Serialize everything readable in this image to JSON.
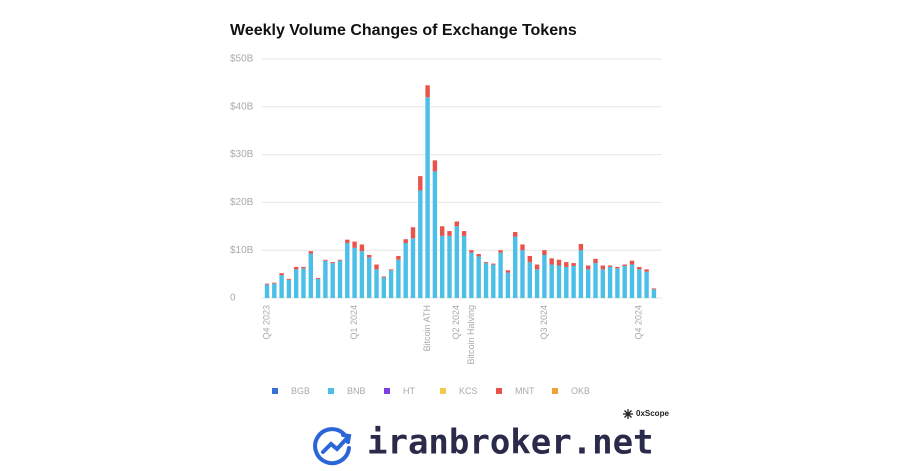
{
  "chart_data": {
    "type": "stacked_bar",
    "title": "Weekly Volume Changes of Exchange Tokens",
    "categories": [
      "Q4 2023",
      null,
      null,
      null,
      null,
      null,
      null,
      null,
      null,
      null,
      null,
      null,
      "Q1 2024",
      null,
      null,
      null,
      null,
      null,
      null,
      null,
      null,
      null,
      "Bitcoin ATH",
      null,
      null,
      null,
      "Q2 2024",
      null,
      "Bitcoin Halving",
      null,
      null,
      null,
      null,
      null,
      null,
      null,
      null,
      null,
      "Q3 2024",
      null,
      null,
      null,
      null,
      null,
      null,
      null,
      null,
      null,
      null,
      null,
      null,
      "Q4 2024",
      null,
      null
    ],
    "series": [
      {
        "name": "BGB",
        "color": "#3a6fd8",
        "values": [
          0,
          0,
          0,
          0,
          0,
          0,
          0,
          0,
          0,
          0,
          0,
          0,
          0,
          0,
          0,
          0,
          0,
          0,
          0,
          0,
          0,
          0,
          0,
          0,
          0,
          0,
          0,
          0,
          0,
          0,
          0,
          0,
          0,
          0,
          0,
          0,
          0,
          0,
          0,
          0,
          0,
          0,
          0,
          0,
          0,
          0,
          0,
          0,
          0,
          0,
          0,
          0,
          0,
          0
        ]
      },
      {
        "name": "BNB",
        "color": "#4bbfe8",
        "values": [
          2.8,
          3.0,
          4.8,
          3.8,
          6.0,
          6.2,
          9.3,
          4.0,
          7.8,
          7.3,
          7.8,
          11.5,
          10.5,
          9.8,
          8.5,
          6.0,
          4.3,
          5.8,
          8.0,
          11.5,
          12.5,
          22.5,
          42,
          26.5,
          13,
          13,
          15,
          13,
          9.5,
          8.7,
          7.3,
          7.0,
          9.5,
          5.3,
          12.8,
          10,
          7.5,
          6,
          9,
          7,
          6.8,
          6.5,
          6.7,
          10,
          6,
          7.3,
          6,
          6.5,
          6.2,
          6.7,
          7,
          6,
          5.5,
          1.8
        ]
      },
      {
        "name": "HT",
        "color": "#7c3fe0",
        "values": [
          0,
          0,
          0,
          0,
          0,
          0,
          0,
          0,
          0,
          0,
          0,
          0,
          0,
          0,
          0,
          0,
          0,
          0,
          0,
          0,
          0,
          0,
          0,
          0,
          0,
          0,
          0,
          0,
          0,
          0,
          0,
          0,
          0,
          0,
          0,
          0,
          0,
          0,
          0,
          0,
          0,
          0,
          0,
          0,
          0,
          0,
          0,
          0,
          0,
          0,
          0,
          0,
          0,
          0
        ]
      },
      {
        "name": "KCS",
        "color": "#f2c94c",
        "values": [
          0,
          0,
          0,
          0,
          0,
          0,
          0,
          0,
          0,
          0,
          0,
          0,
          0,
          0,
          0,
          0,
          0,
          0,
          0,
          0,
          0,
          0,
          0,
          0,
          0,
          0,
          0,
          0,
          0,
          0,
          0,
          0,
          0,
          0,
          0,
          0,
          0,
          0,
          0,
          0,
          0,
          0,
          0,
          0,
          0,
          0,
          0,
          0,
          0,
          0,
          0,
          0,
          0,
          0
        ]
      },
      {
        "name": "MNT",
        "color": "#e8534a",
        "values": [
          0.2,
          0.2,
          0.4,
          0.2,
          0.5,
          0.3,
          0.5,
          0.2,
          0.2,
          0.2,
          0.2,
          0.7,
          1.3,
          1.4,
          0.5,
          1.0,
          0.2,
          0.2,
          0.8,
          0.8,
          2.3,
          3.0,
          2.5,
          2.3,
          2.0,
          1.0,
          1.0,
          1.0,
          0.5,
          0.5,
          0.2,
          0.2,
          0.5,
          0.5,
          1.0,
          1.2,
          1.3,
          1.0,
          1.0,
          1.3,
          1.2,
          1.0,
          0.6,
          1.3,
          0.8,
          0.9,
          0.8,
          0.3,
          0.3,
          0.3,
          0.8,
          0.5,
          0.5,
          0.2
        ]
      },
      {
        "name": "OKB",
        "color": "#f0a035",
        "values": [
          0,
          0,
          0,
          0,
          0,
          0,
          0,
          0,
          0,
          0,
          0,
          0,
          0,
          0,
          0,
          0,
          0,
          0,
          0,
          0,
          0,
          0,
          0,
          0,
          0,
          0,
          0,
          0,
          0,
          0,
          0,
          0,
          0,
          0,
          0,
          0,
          0,
          0,
          0,
          0,
          0,
          0,
          0,
          0,
          0,
          0,
          0,
          0,
          0,
          0,
          0,
          0,
          0,
          0
        ]
      }
    ],
    "ylim": [
      0,
      50
    ],
    "yticks": [
      0,
      {
        "value": 10,
        "label": "$10B"
      },
      {
        "value": 20,
        "label": "$20B"
      },
      {
        "value": 30,
        "label": "$30B"
      },
      {
        "value": 40,
        "label": "$40B"
      },
      {
        "value": 50,
        "label": "$50B"
      }
    ],
    "grid": true,
    "source": "0xScope",
    "watermark": "iranbroker.net"
  }
}
